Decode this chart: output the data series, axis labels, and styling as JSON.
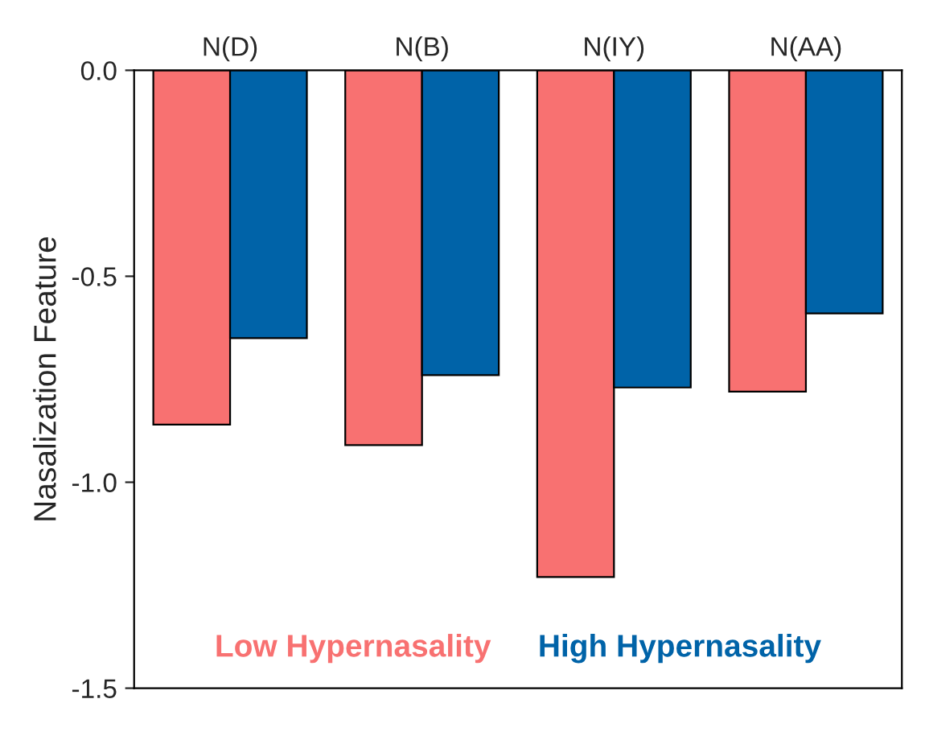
{
  "chart_data": {
    "type": "bar",
    "ylabel": "Nasalization Feature",
    "categories": [
      "N(D)",
      "N(B)",
      "N(IY)",
      "N(AA)"
    ],
    "series": [
      {
        "name": "Low Hypernasality",
        "color": "#f87171",
        "values": [
          -0.86,
          -0.91,
          -1.23,
          -0.78
        ]
      },
      {
        "name": "High Hypernasality",
        "color": "#0063a8",
        "values": [
          -0.65,
          -0.74,
          -0.77,
          -0.59
        ]
      }
    ],
    "ylim": [
      -1.5,
      0.0
    ],
    "yticks": [
      {
        "value": -1.5,
        "label": "-1.5"
      },
      {
        "value": -1.0,
        "label": "-1.0"
      },
      {
        "value": -0.5,
        "label": "-0.5"
      },
      {
        "value": 0.0,
        "label": "0.0"
      }
    ],
    "grid": false,
    "legend": "bottom"
  }
}
